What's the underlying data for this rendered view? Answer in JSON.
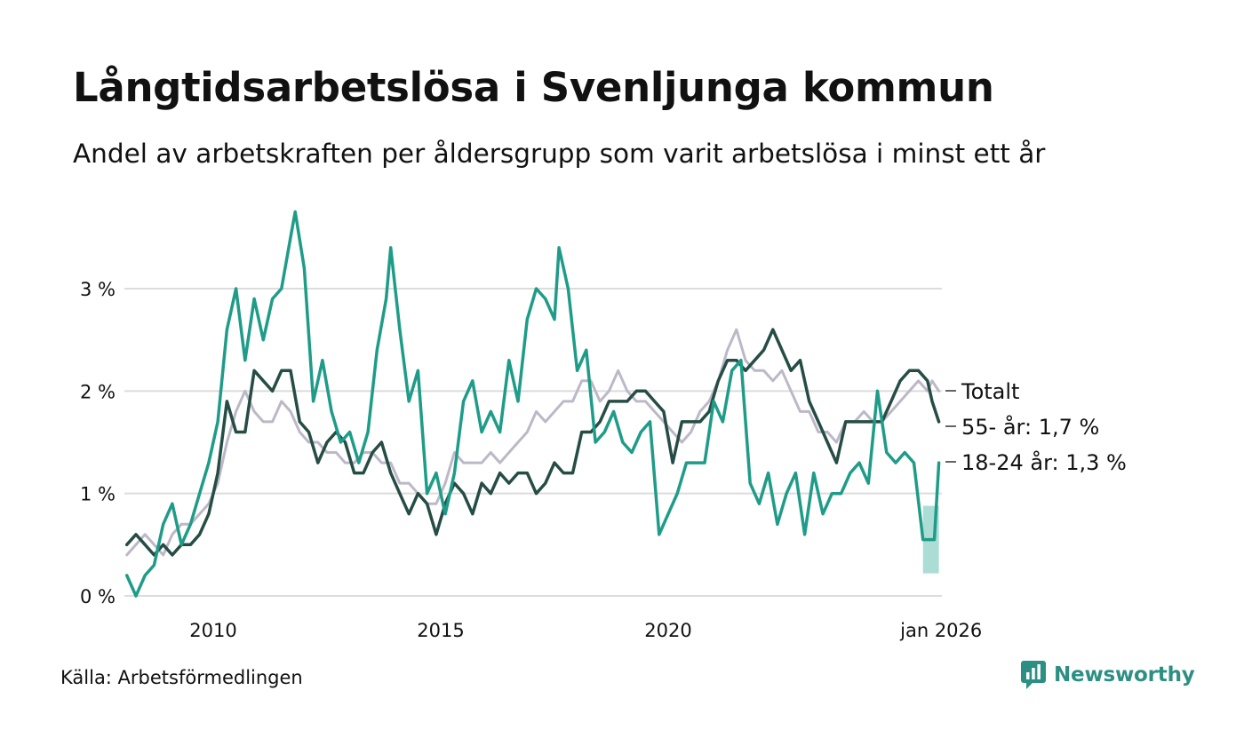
{
  "page": {
    "title": "Långtidsarbetslösa i Svenljunga kommun",
    "subtitle": "Andel av arbetskraften per åldersgrupp som varit arbetslösa i minst ett år",
    "source": "Källa: Arbetsförmedlingen",
    "brand": "Newsworthy"
  },
  "chart_data": {
    "type": "line",
    "title": "Långtidsarbetslösa i Svenljunga kommun",
    "subtitle": "Andel av arbetskraften per åldersgrupp som varit arbetslösa i minst ett år",
    "xlabel": "",
    "ylabel": "",
    "x_range": [
      2008.1,
      2026.0
    ],
    "ylim": [
      0,
      3.8
    ],
    "y_ticks": [
      0,
      1,
      2,
      3
    ],
    "y_tick_labels": [
      "0 %",
      "1 %",
      "2 %",
      "3 %"
    ],
    "x_ticks": [
      2010,
      2015,
      2020,
      2026.0
    ],
    "x_tick_labels": [
      "2010",
      "2015",
      "2020",
      "jan 2026"
    ],
    "grid": true,
    "legend": "direct labels at line ends (right)",
    "uncertainty_band": {
      "series": "18-24 år",
      "x": [
        2025.6,
        2025.95
      ],
      "low": 0.22,
      "high": 0.88
    },
    "series": [
      {
        "name": "Totalt",
        "end_label": "Totalt",
        "color": "#bdb8c7",
        "points": [
          [
            2008.1,
            0.4
          ],
          [
            2008.3,
            0.5
          ],
          [
            2008.5,
            0.6
          ],
          [
            2008.7,
            0.5
          ],
          [
            2008.9,
            0.4
          ],
          [
            2009.1,
            0.6
          ],
          [
            2009.3,
            0.7
          ],
          [
            2009.5,
            0.7
          ],
          [
            2009.7,
            0.8
          ],
          [
            2009.9,
            0.9
          ],
          [
            2010.1,
            1.1
          ],
          [
            2010.3,
            1.5
          ],
          [
            2010.5,
            1.8
          ],
          [
            2010.7,
            2.0
          ],
          [
            2010.9,
            1.8
          ],
          [
            2011.1,
            1.7
          ],
          [
            2011.3,
            1.7
          ],
          [
            2011.5,
            1.9
          ],
          [
            2011.7,
            1.8
          ],
          [
            2011.9,
            1.6
          ],
          [
            2012.1,
            1.5
          ],
          [
            2012.3,
            1.5
          ],
          [
            2012.5,
            1.4
          ],
          [
            2012.7,
            1.4
          ],
          [
            2012.9,
            1.3
          ],
          [
            2013.1,
            1.3
          ],
          [
            2013.3,
            1.4
          ],
          [
            2013.5,
            1.4
          ],
          [
            2013.7,
            1.3
          ],
          [
            2013.9,
            1.3
          ],
          [
            2014.1,
            1.1
          ],
          [
            2014.3,
            1.1
          ],
          [
            2014.5,
            1.0
          ],
          [
            2014.7,
            0.9
          ],
          [
            2014.9,
            0.9
          ],
          [
            2015.1,
            1.1
          ],
          [
            2015.3,
            1.4
          ],
          [
            2015.5,
            1.3
          ],
          [
            2015.7,
            1.3
          ],
          [
            2015.9,
            1.3
          ],
          [
            2016.1,
            1.4
          ],
          [
            2016.3,
            1.3
          ],
          [
            2016.5,
            1.4
          ],
          [
            2016.7,
            1.5
          ],
          [
            2016.9,
            1.6
          ],
          [
            2017.1,
            1.8
          ],
          [
            2017.3,
            1.7
          ],
          [
            2017.5,
            1.8
          ],
          [
            2017.7,
            1.9
          ],
          [
            2017.9,
            1.9
          ],
          [
            2018.1,
            2.1
          ],
          [
            2018.3,
            2.1
          ],
          [
            2018.5,
            1.9
          ],
          [
            2018.7,
            2.0
          ],
          [
            2018.9,
            2.2
          ],
          [
            2019.1,
            2.0
          ],
          [
            2019.3,
            1.9
          ],
          [
            2019.5,
            1.9
          ],
          [
            2019.7,
            1.8
          ],
          [
            2019.9,
            1.7
          ],
          [
            2020.1,
            1.6
          ],
          [
            2020.3,
            1.5
          ],
          [
            2020.5,
            1.6
          ],
          [
            2020.7,
            1.8
          ],
          [
            2020.9,
            1.9
          ],
          [
            2021.1,
            2.1
          ],
          [
            2021.3,
            2.4
          ],
          [
            2021.5,
            2.6
          ],
          [
            2021.7,
            2.3
          ],
          [
            2021.9,
            2.2
          ],
          [
            2022.1,
            2.2
          ],
          [
            2022.3,
            2.1
          ],
          [
            2022.5,
            2.2
          ],
          [
            2022.7,
            2.0
          ],
          [
            2022.9,
            1.8
          ],
          [
            2023.1,
            1.8
          ],
          [
            2023.3,
            1.6
          ],
          [
            2023.5,
            1.6
          ],
          [
            2023.7,
            1.5
          ],
          [
            2023.9,
            1.7
          ],
          [
            2024.1,
            1.7
          ],
          [
            2024.3,
            1.8
          ],
          [
            2024.5,
            1.7
          ],
          [
            2024.7,
            1.7
          ],
          [
            2024.9,
            1.8
          ],
          [
            2025.1,
            1.9
          ],
          [
            2025.3,
            2.0
          ],
          [
            2025.5,
            2.1
          ],
          [
            2025.7,
            2.0
          ],
          [
            2025.8,
            2.1
          ],
          [
            2025.95,
            2.0
          ]
        ]
      },
      {
        "name": "55- år",
        "end_label": "55- år: 1,7 %",
        "color": "#264d45",
        "points": [
          [
            2008.1,
            0.5
          ],
          [
            2008.3,
            0.6
          ],
          [
            2008.5,
            0.5
          ],
          [
            2008.7,
            0.4
          ],
          [
            2008.9,
            0.5
          ],
          [
            2009.1,
            0.4
          ],
          [
            2009.3,
            0.5
          ],
          [
            2009.5,
            0.5
          ],
          [
            2009.7,
            0.6
          ],
          [
            2009.9,
            0.8
          ],
          [
            2010.1,
            1.2
          ],
          [
            2010.3,
            1.9
          ],
          [
            2010.5,
            1.6
          ],
          [
            2010.7,
            1.6
          ],
          [
            2010.9,
            2.2
          ],
          [
            2011.1,
            2.1
          ],
          [
            2011.3,
            2.0
          ],
          [
            2011.5,
            2.2
          ],
          [
            2011.7,
            2.2
          ],
          [
            2011.9,
            1.7
          ],
          [
            2012.1,
            1.6
          ],
          [
            2012.3,
            1.3
          ],
          [
            2012.5,
            1.5
          ],
          [
            2012.7,
            1.6
          ],
          [
            2012.9,
            1.5
          ],
          [
            2013.1,
            1.2
          ],
          [
            2013.3,
            1.2
          ],
          [
            2013.5,
            1.4
          ],
          [
            2013.7,
            1.5
          ],
          [
            2013.9,
            1.2
          ],
          [
            2014.1,
            1.0
          ],
          [
            2014.3,
            0.8
          ],
          [
            2014.5,
            1.0
          ],
          [
            2014.7,
            0.9
          ],
          [
            2014.9,
            0.6
          ],
          [
            2015.1,
            0.9
          ],
          [
            2015.3,
            1.1
          ],
          [
            2015.5,
            1.0
          ],
          [
            2015.7,
            0.8
          ],
          [
            2015.9,
            1.1
          ],
          [
            2016.1,
            1.0
          ],
          [
            2016.3,
            1.2
          ],
          [
            2016.5,
            1.1
          ],
          [
            2016.7,
            1.2
          ],
          [
            2016.9,
            1.2
          ],
          [
            2017.1,
            1.0
          ],
          [
            2017.3,
            1.1
          ],
          [
            2017.5,
            1.3
          ],
          [
            2017.7,
            1.2
          ],
          [
            2017.9,
            1.2
          ],
          [
            2018.1,
            1.6
          ],
          [
            2018.3,
            1.6
          ],
          [
            2018.5,
            1.7
          ],
          [
            2018.7,
            1.9
          ],
          [
            2018.9,
            1.9
          ],
          [
            2019.1,
            1.9
          ],
          [
            2019.3,
            2.0
          ],
          [
            2019.5,
            2.0
          ],
          [
            2019.7,
            1.9
          ],
          [
            2019.9,
            1.8
          ],
          [
            2020.1,
            1.3
          ],
          [
            2020.3,
            1.7
          ],
          [
            2020.5,
            1.7
          ],
          [
            2020.7,
            1.7
          ],
          [
            2020.9,
            1.8
          ],
          [
            2021.1,
            2.1
          ],
          [
            2021.3,
            2.3
          ],
          [
            2021.5,
            2.3
          ],
          [
            2021.7,
            2.2
          ],
          [
            2021.9,
            2.3
          ],
          [
            2022.1,
            2.4
          ],
          [
            2022.3,
            2.6
          ],
          [
            2022.5,
            2.4
          ],
          [
            2022.7,
            2.2
          ],
          [
            2022.9,
            2.3
          ],
          [
            2023.1,
            1.9
          ],
          [
            2023.3,
            1.7
          ],
          [
            2023.5,
            1.5
          ],
          [
            2023.7,
            1.3
          ],
          [
            2023.9,
            1.7
          ],
          [
            2024.1,
            1.7
          ],
          [
            2024.3,
            1.7
          ],
          [
            2024.5,
            1.7
          ],
          [
            2024.7,
            1.7
          ],
          [
            2024.9,
            1.9
          ],
          [
            2025.1,
            2.1
          ],
          [
            2025.3,
            2.2
          ],
          [
            2025.5,
            2.2
          ],
          [
            2025.7,
            2.1
          ],
          [
            2025.8,
            1.9
          ],
          [
            2025.95,
            1.7
          ]
        ]
      },
      {
        "name": "18-24 år",
        "end_label": "18-24 år: 1,3 %",
        "color": "#1f9c88",
        "points": [
          [
            2008.1,
            0.2
          ],
          [
            2008.3,
            0.0
          ],
          [
            2008.5,
            0.2
          ],
          [
            2008.7,
            0.3
          ],
          [
            2008.9,
            0.7
          ],
          [
            2009.1,
            0.9
          ],
          [
            2009.3,
            0.5
          ],
          [
            2009.5,
            0.7
          ],
          [
            2009.7,
            1.0
          ],
          [
            2009.9,
            1.3
          ],
          [
            2010.1,
            1.7
          ],
          [
            2010.3,
            2.6
          ],
          [
            2010.5,
            3.0
          ],
          [
            2010.7,
            2.3
          ],
          [
            2010.9,
            2.9
          ],
          [
            2011.1,
            2.5
          ],
          [
            2011.3,
            2.9
          ],
          [
            2011.5,
            3.0
          ],
          [
            2011.7,
            3.5
          ],
          [
            2011.8,
            3.75
          ],
          [
            2012.0,
            3.2
          ],
          [
            2012.2,
            1.9
          ],
          [
            2012.4,
            2.3
          ],
          [
            2012.6,
            1.8
          ],
          [
            2012.8,
            1.5
          ],
          [
            2013.0,
            1.6
          ],
          [
            2013.2,
            1.3
          ],
          [
            2013.4,
            1.6
          ],
          [
            2013.6,
            2.4
          ],
          [
            2013.8,
            2.9
          ],
          [
            2013.9,
            3.4
          ],
          [
            2014.1,
            2.6
          ],
          [
            2014.3,
            1.9
          ],
          [
            2014.5,
            2.2
          ],
          [
            2014.7,
            1.0
          ],
          [
            2014.9,
            1.2
          ],
          [
            2015.1,
            0.8
          ],
          [
            2015.3,
            1.2
          ],
          [
            2015.5,
            1.9
          ],
          [
            2015.7,
            2.1
          ],
          [
            2015.9,
            1.6
          ],
          [
            2016.1,
            1.8
          ],
          [
            2016.3,
            1.6
          ],
          [
            2016.5,
            2.3
          ],
          [
            2016.7,
            1.9
          ],
          [
            2016.9,
            2.7
          ],
          [
            2017.1,
            3.0
          ],
          [
            2017.3,
            2.9
          ],
          [
            2017.5,
            2.7
          ],
          [
            2017.6,
            3.4
          ],
          [
            2017.8,
            3.0
          ],
          [
            2018.0,
            2.2
          ],
          [
            2018.2,
            2.4
          ],
          [
            2018.4,
            1.5
          ],
          [
            2018.6,
            1.6
          ],
          [
            2018.8,
            1.8
          ],
          [
            2019.0,
            1.5
          ],
          [
            2019.2,
            1.4
          ],
          [
            2019.4,
            1.6
          ],
          [
            2019.6,
            1.7
          ],
          [
            2019.8,
            0.6
          ],
          [
            2020.0,
            0.8
          ],
          [
            2020.2,
            1.0
          ],
          [
            2020.4,
            1.3
          ],
          [
            2020.6,
            1.3
          ],
          [
            2020.8,
            1.3
          ],
          [
            2021.0,
            1.9
          ],
          [
            2021.2,
            1.7
          ],
          [
            2021.4,
            2.2
          ],
          [
            2021.6,
            2.3
          ],
          [
            2021.8,
            1.1
          ],
          [
            2022.0,
            0.9
          ],
          [
            2022.2,
            1.2
          ],
          [
            2022.4,
            0.7
          ],
          [
            2022.6,
            1.0
          ],
          [
            2022.8,
            1.2
          ],
          [
            2023.0,
            0.6
          ],
          [
            2023.2,
            1.2
          ],
          [
            2023.4,
            0.8
          ],
          [
            2023.6,
            1.0
          ],
          [
            2023.8,
            1.0
          ],
          [
            2024.0,
            1.2
          ],
          [
            2024.2,
            1.3
          ],
          [
            2024.4,
            1.1
          ],
          [
            2024.6,
            2.0
          ],
          [
            2024.8,
            1.4
          ],
          [
            2025.0,
            1.3
          ],
          [
            2025.2,
            1.4
          ],
          [
            2025.4,
            1.3
          ],
          [
            2025.6,
            0.55
          ],
          [
            2025.85,
            0.55
          ],
          [
            2025.95,
            1.3
          ]
        ]
      }
    ]
  }
}
